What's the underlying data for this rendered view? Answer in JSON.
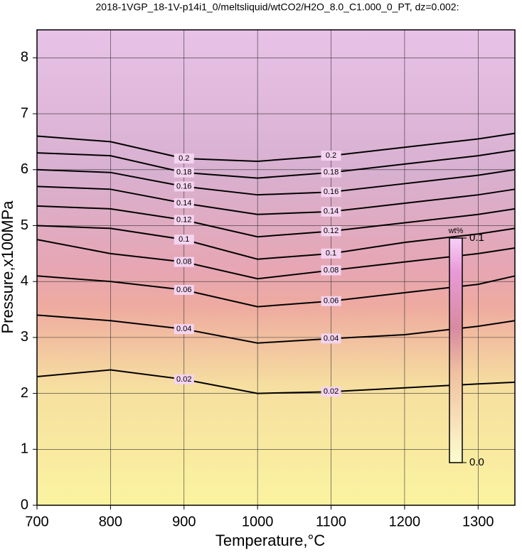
{
  "chart_data": {
    "type": "contour",
    "title": "2018-1VGP_18-1V-p14i1_0/meltsliquid/wtCO2/H2O_8.0_C1.000_0_PT, dz=0.002:",
    "x_label": "Temperature,°C",
    "y_label": "Pressure,x100MPa",
    "xlim": [
      700,
      1350
    ],
    "ylim": [
      0,
      8.5
    ],
    "xticks": [
      700,
      800,
      900,
      1000,
      1100,
      1200,
      1300
    ],
    "yticks": [
      0,
      1,
      2,
      3,
      4,
      5,
      6,
      7,
      8
    ],
    "grid": true,
    "x": [
      700,
      800,
      900,
      1000,
      1100,
      1200,
      1300,
      1350
    ],
    "contours": [
      {
        "level": 0.02,
        "values": [
          2.3,
          2.42,
          2.25,
          2.0,
          2.03,
          2.1,
          2.17,
          2.2
        ]
      },
      {
        "level": 0.04,
        "values": [
          3.4,
          3.3,
          3.15,
          2.9,
          2.98,
          3.05,
          3.2,
          3.3
        ]
      },
      {
        "level": 0.06,
        "values": [
          4.1,
          4.0,
          3.85,
          3.55,
          3.65,
          3.8,
          3.95,
          4.1
        ]
      },
      {
        "level": 0.08,
        "values": [
          4.75,
          4.5,
          4.35,
          4.05,
          4.2,
          4.35,
          4.5,
          4.6
        ]
      },
      {
        "level": 0.1,
        "values": [
          5.0,
          4.95,
          4.75,
          4.4,
          4.5,
          4.7,
          4.85,
          4.95
        ]
      },
      {
        "level": 0.12,
        "values": [
          5.35,
          5.3,
          5.1,
          4.8,
          4.9,
          5.05,
          5.2,
          5.3
        ]
      },
      {
        "level": 0.14,
        "values": [
          5.7,
          5.65,
          5.4,
          5.2,
          5.25,
          5.4,
          5.55,
          5.65
        ]
      },
      {
        "level": 0.16,
        "values": [
          6.0,
          5.95,
          5.7,
          5.55,
          5.6,
          5.75,
          5.9,
          6.0
        ]
      },
      {
        "level": 0.18,
        "values": [
          6.3,
          6.25,
          5.95,
          5.85,
          5.95,
          6.1,
          6.25,
          6.35
        ]
      },
      {
        "level": 0.2,
        "values": [
          6.6,
          6.5,
          6.2,
          6.15,
          6.25,
          6.4,
          6.55,
          6.65
        ]
      }
    ],
    "colorbar": {
      "label": "wt%",
      "lim": [
        0,
        0.1
      ],
      "ticks": [
        {
          "value": 0,
          "label": "0.0"
        },
        0.1
      ]
    }
  }
}
